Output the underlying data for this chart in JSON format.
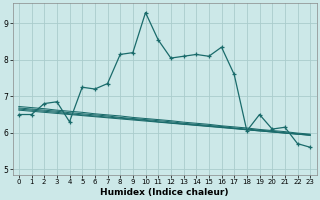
{
  "xlabel": "Humidex (Indice chaleur)",
  "ylabel": "",
  "bg_color": "#cce8e8",
  "grid_color": "#aacccc",
  "line_color": "#1a6b6b",
  "xlim": [
    -0.5,
    23.5
  ],
  "ylim": [
    4.85,
    9.55
  ],
  "yticks": [
    5,
    6,
    7,
    8,
    9
  ],
  "xticks": [
    0,
    1,
    2,
    3,
    4,
    5,
    6,
    7,
    8,
    9,
    10,
    11,
    12,
    13,
    14,
    15,
    16,
    17,
    18,
    19,
    20,
    21,
    22,
    23
  ],
  "main_line": [
    6.5,
    6.5,
    6.8,
    6.85,
    6.3,
    7.25,
    7.2,
    7.35,
    8.15,
    8.2,
    9.3,
    8.55,
    8.05,
    8.1,
    8.15,
    8.1,
    8.35,
    7.6,
    6.05,
    6.5,
    6.1,
    6.15,
    5.7,
    5.6
  ],
  "trend_lines": [
    [
      6.62,
      6.59,
      6.56,
      6.53,
      6.5,
      6.47,
      6.44,
      6.41,
      6.38,
      6.35,
      6.32,
      6.29,
      6.26,
      6.23,
      6.2,
      6.17,
      6.14,
      6.11,
      6.08,
      6.05,
      6.02,
      5.99,
      5.96,
      5.93
    ],
    [
      6.65,
      6.62,
      6.59,
      6.56,
      6.52,
      6.49,
      6.46,
      6.43,
      6.4,
      6.37,
      6.34,
      6.3,
      6.27,
      6.24,
      6.21,
      6.18,
      6.15,
      6.12,
      6.08,
      6.05,
      6.02,
      5.99,
      5.96,
      5.93
    ],
    [
      6.68,
      6.65,
      6.62,
      6.59,
      6.55,
      6.52,
      6.49,
      6.46,
      6.42,
      6.39,
      6.36,
      6.33,
      6.3,
      6.26,
      6.23,
      6.2,
      6.17,
      6.13,
      6.1,
      6.07,
      6.04,
      6.0,
      5.97,
      5.94
    ],
    [
      6.72,
      6.69,
      6.66,
      6.62,
      6.59,
      6.56,
      6.52,
      6.49,
      6.46,
      6.42,
      6.39,
      6.36,
      6.33,
      6.29,
      6.26,
      6.23,
      6.19,
      6.16,
      6.13,
      6.09,
      6.06,
      6.03,
      5.99,
      5.96
    ]
  ]
}
